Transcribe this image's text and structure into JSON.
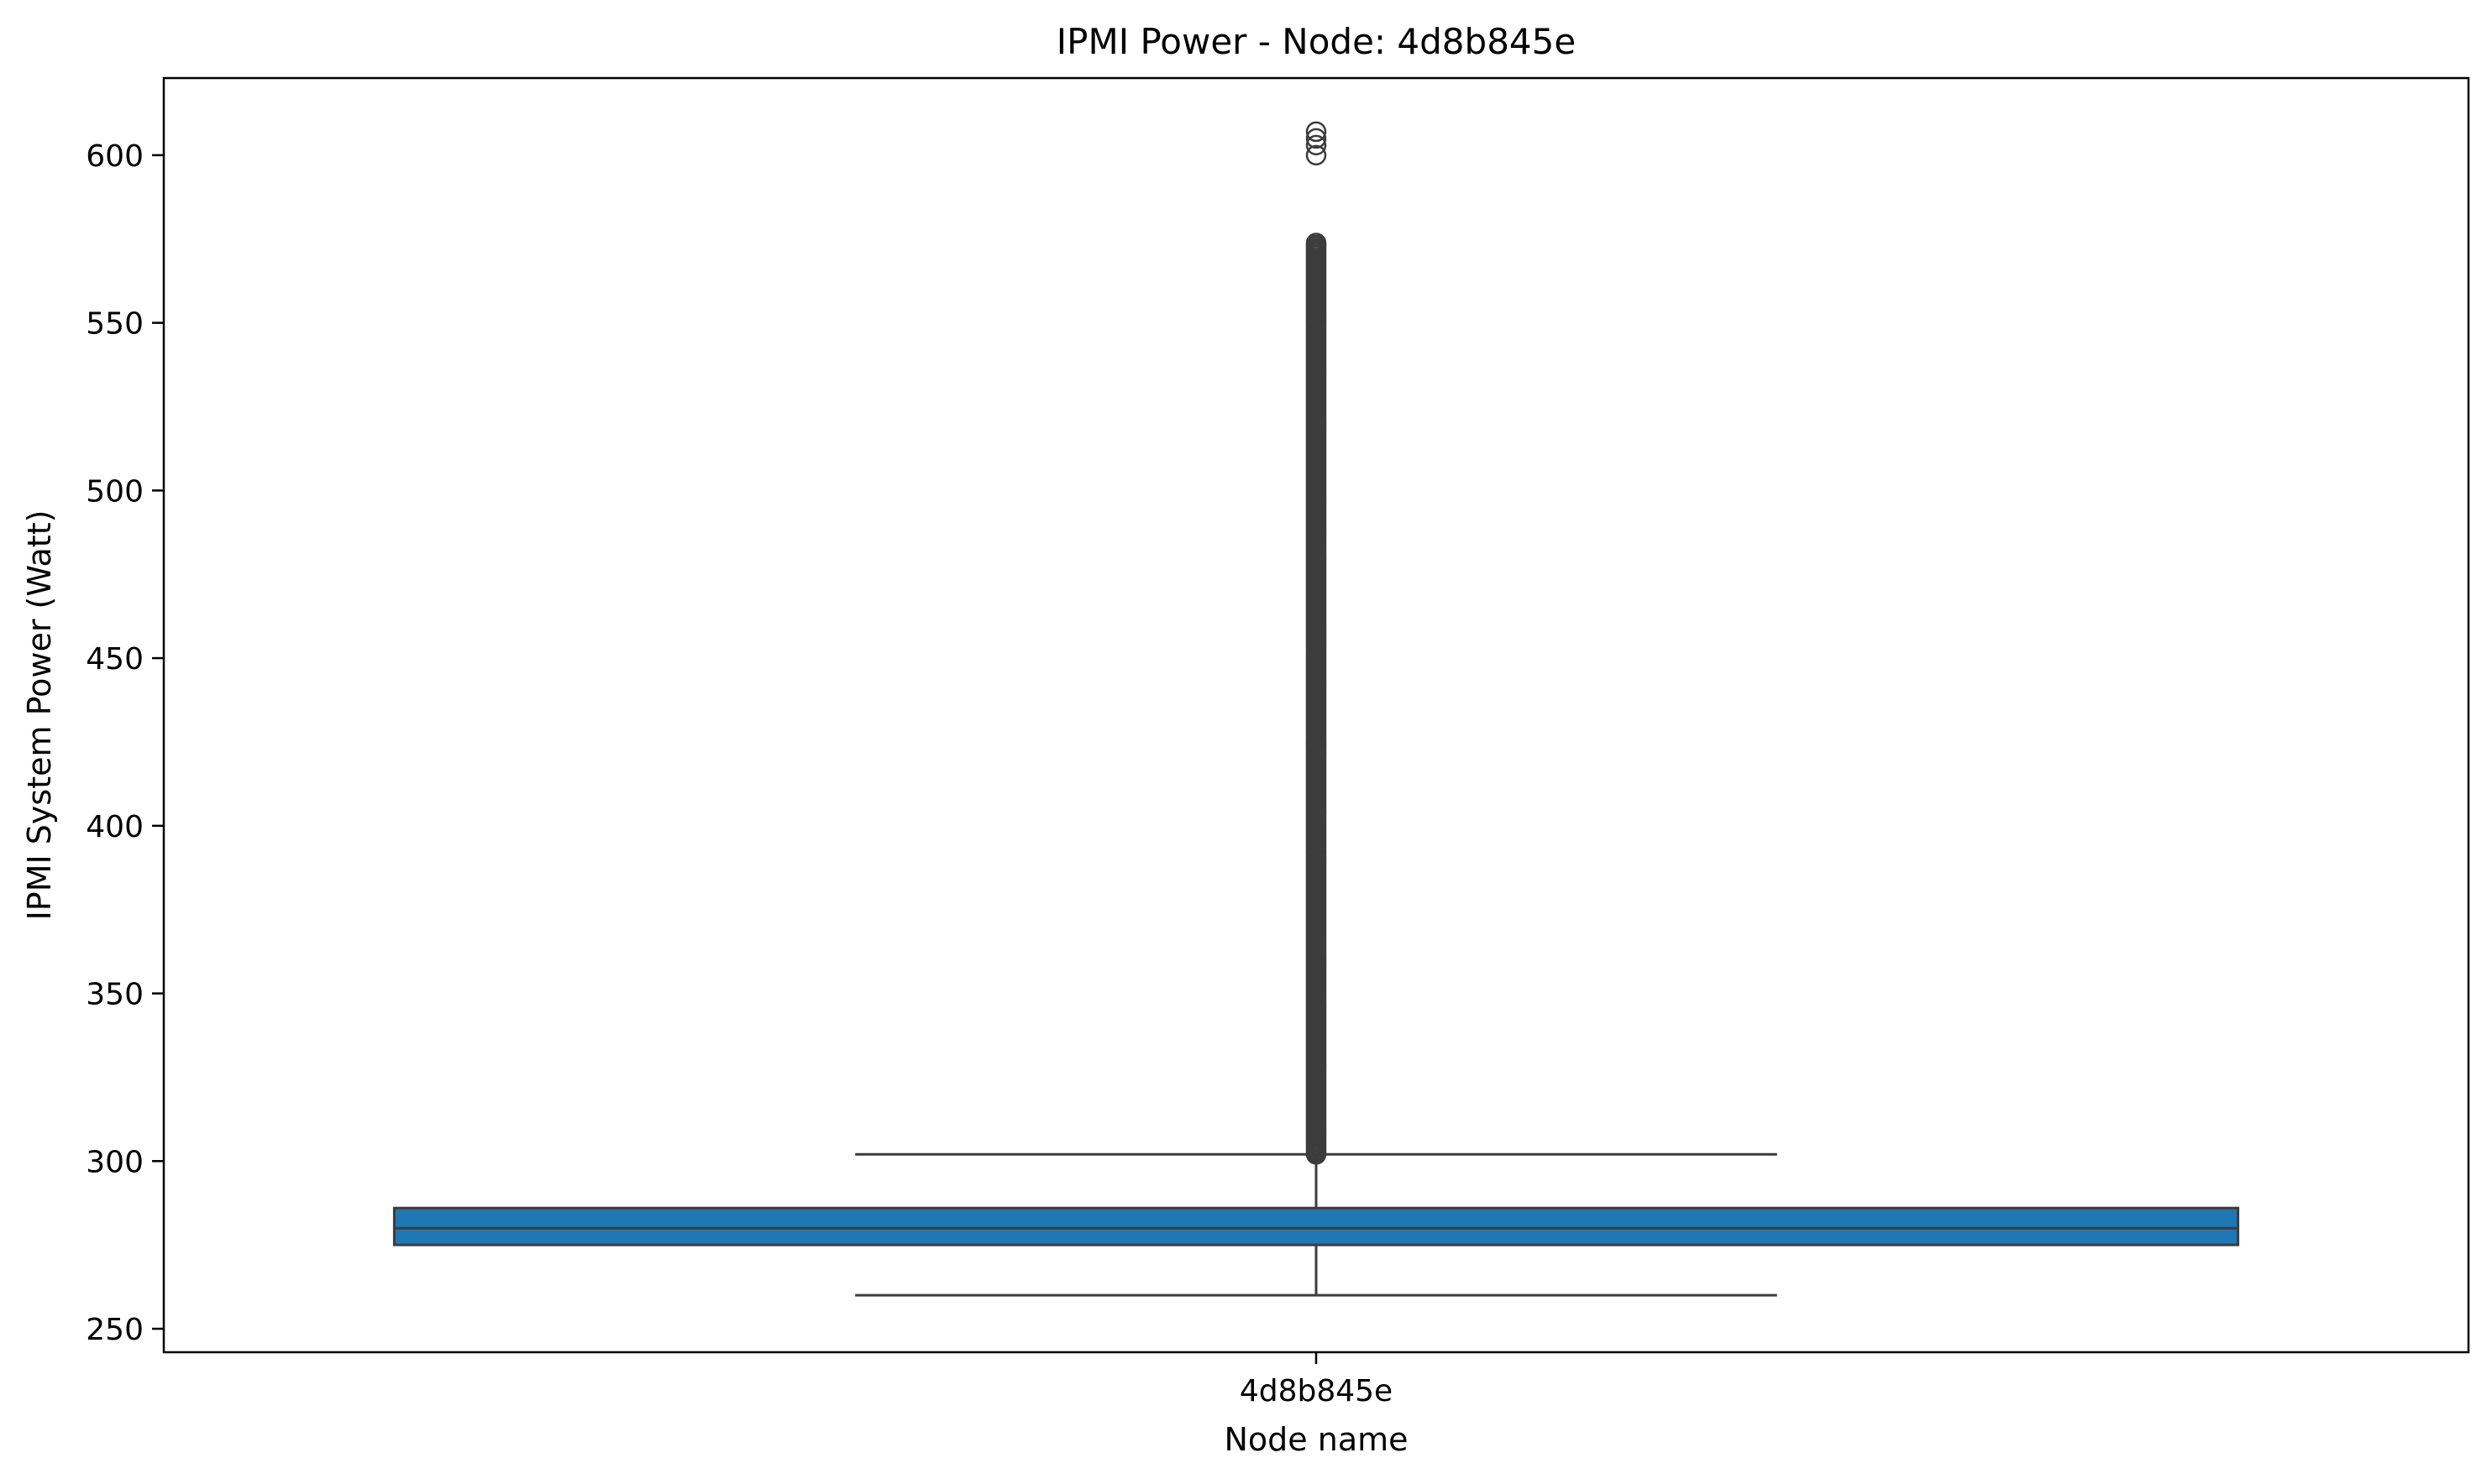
{
  "chart_data": {
    "type": "box",
    "title": "IPMI Power - Node: 4d8b845e",
    "xlabel": "Node name",
    "ylabel": "IPMI System Power (Watt)",
    "ylim": [
      243,
      623
    ],
    "yticks": [
      250,
      300,
      350,
      400,
      450,
      500,
      550,
      600
    ],
    "grid": false,
    "categories": [
      "4d8b845e"
    ],
    "colors": {
      "box_fill": "#1f77b4",
      "line": "#3c3c3c"
    },
    "boxes": [
      {
        "category": "4d8b845e",
        "whisker_low": 260,
        "q1": 275,
        "median": 280,
        "q3": 286,
        "whisker_high": 302,
        "outliers_dense_range": [
          302,
          574
        ],
        "outliers_isolated": [
          600,
          603,
          605,
          607
        ]
      }
    ]
  }
}
